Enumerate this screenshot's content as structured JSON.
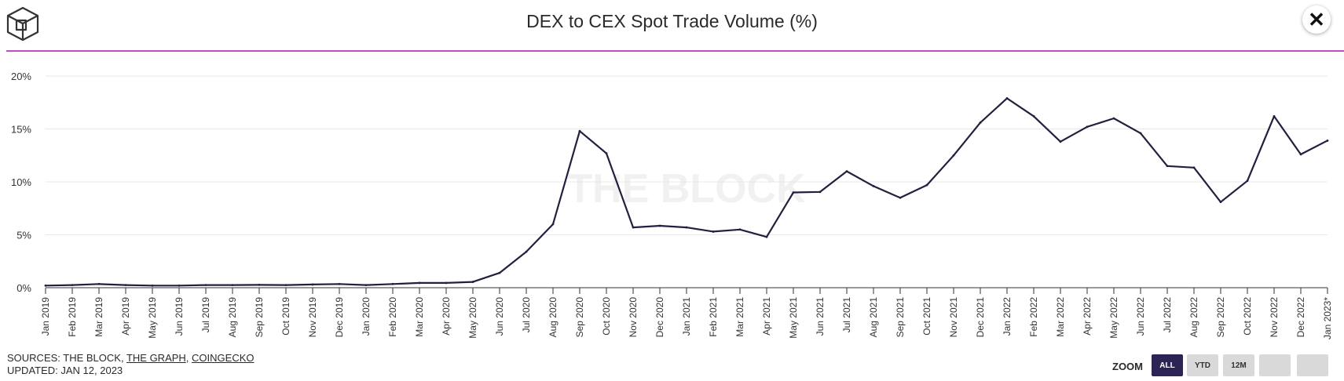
{
  "header": {
    "title": "DEX to CEX Spot Trade Volume (%)"
  },
  "chart_data": {
    "type": "line",
    "title": "DEX to CEX Spot Trade Volume (%)",
    "xlabel": "",
    "ylabel": "",
    "ylim": [
      0,
      20
    ],
    "yticks": [
      "0%",
      "5%",
      "10%",
      "15%",
      "20%"
    ],
    "grid": true,
    "watermark": "THE BLOCK",
    "line_color": "#22203f",
    "categories": [
      "Jan 2019",
      "Feb 2019",
      "Mar 2019",
      "Apr 2019",
      "May 2019",
      "Jun 2019",
      "Jul 2019",
      "Aug 2019",
      "Sep 2019",
      "Oct 2019",
      "Nov 2019",
      "Dec 2019",
      "Jan 2020",
      "Feb 2020",
      "Mar 2020",
      "Apr 2020",
      "May 2020",
      "Jun 2020",
      "Jul 2020",
      "Aug 2020",
      "Sep 2020",
      "Oct 2020",
      "Nov 2020",
      "Dec 2020",
      "Jan 2021",
      "Feb 2021",
      "Mar 2021",
      "Apr 2021",
      "May 2021",
      "Jun 2021",
      "Jul 2021",
      "Aug 2021",
      "Sep 2021",
      "Oct 2021",
      "Nov 2021",
      "Dec 2021",
      "Jan 2022",
      "Feb 2022",
      "Mar 2022",
      "Apr 2022",
      "May 2022",
      "Jun 2022",
      "Jul 2022",
      "Aug 2022",
      "Sep 2022",
      "Oct 2022",
      "Nov 2022",
      "Dec 2022",
      "Jan 2023*"
    ],
    "series": [
      {
        "values": [
          0.2,
          0.25,
          0.35,
          0.25,
          0.2,
          0.2,
          0.25,
          0.25,
          0.27,
          0.25,
          0.3,
          0.35,
          0.25,
          0.35,
          0.45,
          0.45,
          0.55,
          1.4,
          3.4,
          6.0,
          14.8,
          12.7,
          5.7,
          5.85,
          5.7,
          5.3,
          5.5,
          4.8,
          9.0,
          9.05,
          11.0,
          9.6,
          8.5,
          9.7,
          12.5,
          15.6,
          17.9,
          16.2,
          13.8,
          15.2,
          16.0,
          14.6,
          11.5,
          11.35,
          8.1,
          10.1,
          16.2,
          12.6,
          13.9
        ]
      }
    ]
  },
  "footer": {
    "sources_prefix": "SOURCES: THE BLOCK, ",
    "source_graph": "THE GRAPH",
    "separator": ", ",
    "source_coingecko": "COINGECKO",
    "updated": "UPDATED: JAN 12, 2023"
  },
  "zoom": {
    "label": "ZOOM",
    "buttons": [
      {
        "label": "ALL",
        "active": true
      },
      {
        "label": "YTD",
        "active": false
      },
      {
        "label": "12M",
        "active": false
      },
      {
        "label": "",
        "active": false
      },
      {
        "label": "",
        "active": false
      }
    ]
  },
  "colors": {
    "accent": "#c44fc4",
    "line": "#22203f",
    "active_button": "#2d2456"
  },
  "icons": {
    "logo": "the-block-cube-logo",
    "close": "close-icon"
  }
}
